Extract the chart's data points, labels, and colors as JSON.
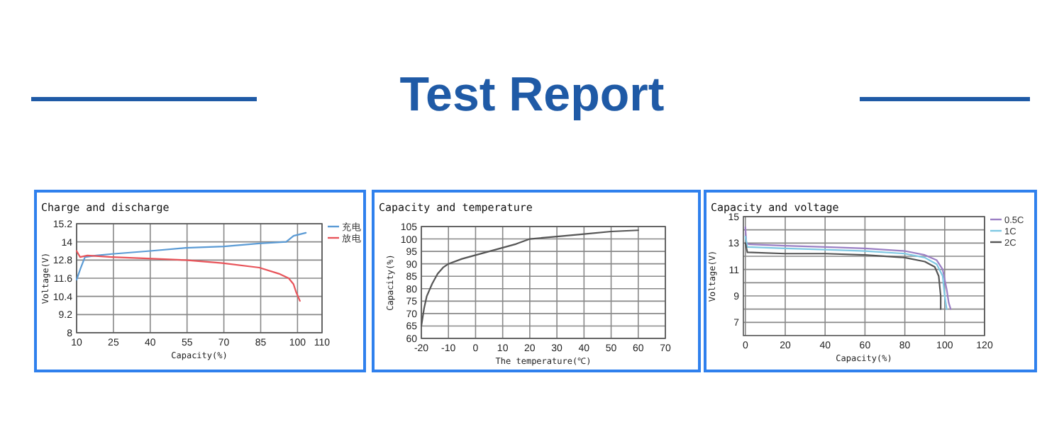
{
  "chart_data": [
    {
      "type": "line",
      "title": "Charge and discharge",
      "annotations": [
        "Test Report"
      ],
      "xlabel": "Capacity(%)",
      "ylabel": "Voltage(V)",
      "xlim": [
        10,
        110
      ],
      "xticks": [
        10,
        25,
        40,
        55,
        70,
        85,
        100,
        110
      ],
      "ylim": [
        8,
        15.2
      ],
      "yticks": [
        8,
        9.2,
        10.4,
        11.6,
        12.8,
        14,
        15.2
      ],
      "grid": true,
      "legend": "top right",
      "series": [
        {
          "name": "充电",
          "color": "#5b9bd5",
          "x": [
            10,
            11.5,
            13.4,
            18,
            24.4,
            40,
            54.4,
            70,
            84.4,
            95.4,
            98.4,
            103.4
          ],
          "values": [
            11.5,
            12.2,
            13.0,
            13.1,
            13.2,
            13.4,
            13.6,
            13.7,
            13.9,
            14.0,
            14.4,
            14.6
          ]
        },
        {
          "name": "放电",
          "color": "#e8545a",
          "x": [
            10,
            11.4,
            14.4,
            24.4,
            39,
            54.4,
            69.4,
            84.4,
            92.4,
            96.4,
            98.4,
            99.4,
            101
          ],
          "values": [
            13.4,
            13.0,
            13.1,
            13.0,
            12.9,
            12.8,
            12.6,
            12.3,
            11.9,
            11.6,
            11.2,
            10.7,
            10.1
          ]
        }
      ]
    },
    {
      "type": "line",
      "title": "Capacity and temperature",
      "xlabel": "The temperature(℃)",
      "ylabel": "Capacity(%)",
      "xlim": [
        -20,
        70
      ],
      "xticks": [
        -20,
        -10,
        0,
        10,
        20,
        30,
        40,
        50,
        60,
        70
      ],
      "ylim": [
        60,
        105
      ],
      "yticks": [
        60,
        65,
        70,
        75,
        80,
        85,
        90,
        95,
        100,
        105
      ],
      "grid": true,
      "series": [
        {
          "color": "#555555",
          "x": [
            -20,
            -19,
            -18,
            -16,
            -14,
            -12,
            -10,
            -5,
            0,
            5,
            10,
            15,
            20,
            30,
            40,
            50,
            60
          ],
          "values": [
            65,
            72,
            77,
            82,
            86,
            88.5,
            90,
            92,
            93.5,
            95,
            96.5,
            98,
            100,
            101,
            102,
            103,
            103.5
          ]
        }
      ]
    },
    {
      "type": "line",
      "title": "Capacity and voltage",
      "xlabel": "Capacity(%)",
      "ylabel": "Voltage(V)",
      "xlim": [
        -1,
        120
      ],
      "xticks": [
        0,
        20,
        40,
        60,
        80,
        100,
        120
      ],
      "ylim": [
        6,
        15
      ],
      "yticks": [
        7,
        {
          "value": 8,
          "label": null
        },
        9,
        {
          "value": 10,
          "label": null
        },
        11,
        {
          "value": 12,
          "label": null
        },
        13,
        {
          "value": 14,
          "label": null
        },
        15
      ],
      "grid": true,
      "legend": "top right",
      "series": [
        {
          "name": "0.5C",
          "color": "#9b7fc4",
          "x": [
            0,
            0.5,
            2,
            20,
            40,
            60,
            80,
            90,
            96,
            99,
            101,
            102,
            103
          ],
          "values": [
            14.2,
            13,
            12.9,
            12.8,
            12.7,
            12.6,
            12.4,
            12.1,
            11.7,
            11,
            9.5,
            8.5,
            8
          ]
        },
        {
          "name": "1C",
          "color": "#7ec8e3",
          "x": [
            0,
            1,
            20,
            40,
            60,
            80,
            90,
            96,
            99,
            100,
            101
          ],
          "values": [
            13.5,
            12.7,
            12.6,
            12.5,
            12.4,
            12.2,
            11.9,
            11.4,
            10.5,
            9,
            8
          ]
        },
        {
          "name": "2C",
          "color": "#555555",
          "x": [
            0,
            1,
            20,
            40,
            60,
            80,
            90,
            95,
            97,
            98,
            98
          ],
          "values": [
            13,
            12.3,
            12.2,
            12.2,
            12.1,
            11.9,
            11.6,
            11.2,
            10.5,
            9,
            8
          ]
        }
      ]
    }
  ]
}
